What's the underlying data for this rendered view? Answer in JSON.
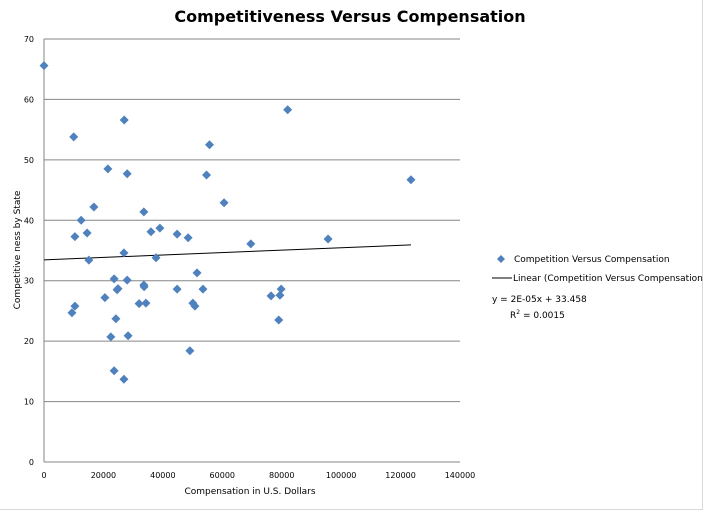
{
  "chart_data": {
    "type": "scatter",
    "title": "Competitiveness Versus Compensation",
    "xlabel": "Compensation  in  U.S. Dollars",
    "ylabel": "Competitive ness   by State",
    "xlim": [
      0,
      140000
    ],
    "ylim": [
      0,
      70
    ],
    "xticks": [
      0,
      20000,
      40000,
      60000,
      80000,
      100000,
      120000,
      140000
    ],
    "yticks": [
      0,
      10,
      20,
      30,
      40,
      50,
      60,
      70
    ],
    "grid": "horizontal",
    "legend_position": "right",
    "series": [
      {
        "name": "Competition Versus Compensation",
        "color": "#4f81bd",
        "marker": "diamond",
        "points": [
          [
            0,
            65.6
          ],
          [
            10000,
            53.8
          ],
          [
            27000,
            56.6
          ],
          [
            82000,
            58.3
          ],
          [
            55700,
            52.5
          ],
          [
            21500,
            48.5
          ],
          [
            28000,
            47.7
          ],
          [
            54700,
            47.5
          ],
          [
            60600,
            42.9
          ],
          [
            16800,
            42.2
          ],
          [
            33600,
            41.4
          ],
          [
            12500,
            40.0
          ],
          [
            10400,
            37.3
          ],
          [
            14500,
            37.9
          ],
          [
            36000,
            38.1
          ],
          [
            39000,
            38.7
          ],
          [
            44800,
            37.7
          ],
          [
            48500,
            37.1
          ],
          [
            69600,
            36.1
          ],
          [
            95600,
            36.9
          ],
          [
            26900,
            34.6
          ],
          [
            15100,
            33.4
          ],
          [
            37700,
            33.8
          ],
          [
            23600,
            30.3
          ],
          [
            28000,
            30.1
          ],
          [
            51500,
            31.3
          ],
          [
            24600,
            28.5
          ],
          [
            24900,
            28.7
          ],
          [
            33600,
            29.3
          ],
          [
            33700,
            29.0
          ],
          [
            44800,
            28.6
          ],
          [
            53500,
            28.6
          ],
          [
            20500,
            27.2
          ],
          [
            10400,
            25.8
          ],
          [
            9400,
            24.7
          ],
          [
            32000,
            26.2
          ],
          [
            34300,
            26.3
          ],
          [
            50100,
            26.3
          ],
          [
            50800,
            25.8
          ],
          [
            76400,
            27.5
          ],
          [
            79400,
            27.6
          ],
          [
            79800,
            28.6
          ],
          [
            79000,
            23.5
          ],
          [
            24200,
            23.7
          ],
          [
            22500,
            20.7
          ],
          [
            28300,
            20.9
          ],
          [
            49100,
            18.4
          ],
          [
            23600,
            15.1
          ],
          [
            26900,
            13.7
          ],
          [
            123500,
            46.7
          ]
        ]
      }
    ],
    "trendline": {
      "name": "Linear (Competition Versus Compensation)",
      "slope": 2e-05,
      "intercept": 33.458,
      "x_range": [
        0,
        123500
      ],
      "equation": "y = 2E-05x + 33.458",
      "r2_label": "R",
      "r2_value": " = 0.0015"
    }
  }
}
